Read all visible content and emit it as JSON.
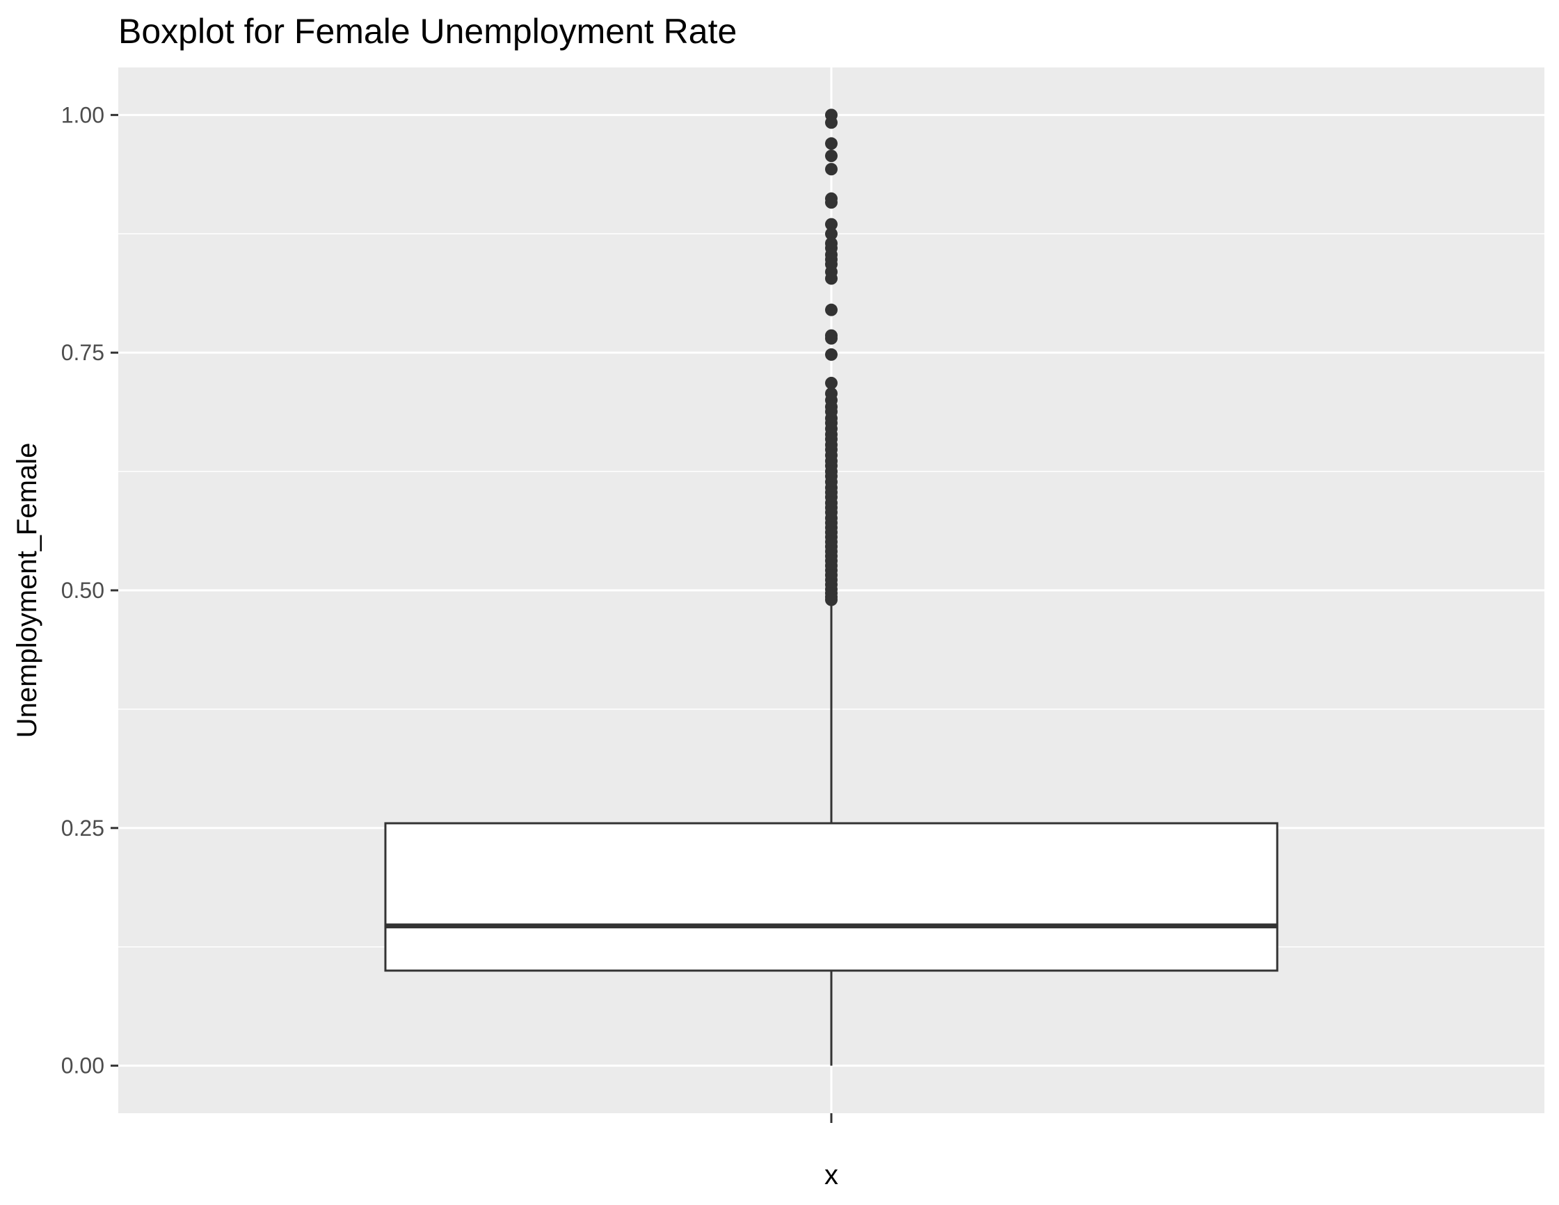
{
  "chart_data": {
    "type": "boxplot",
    "title": "Boxplot for Female Unemployment Rate",
    "xlabel": "x",
    "ylabel": "Unemployment_Female",
    "categories": [
      ""
    ],
    "ylim": [
      -0.05,
      1.05
    ],
    "y_ticks": [
      0.0,
      0.25,
      0.5,
      0.75,
      1.0
    ],
    "y_tick_labels": [
      "0.00",
      "0.25",
      "0.50",
      "0.75",
      "1.00"
    ],
    "grid": true,
    "legend": "none",
    "box": {
      "whisker_low": 0.0,
      "q1": 0.1,
      "median": 0.147,
      "q3": 0.255,
      "whisker_high": 0.487
    },
    "outliers": [
      1.0,
      0.992,
      0.97,
      0.957,
      0.943,
      0.912,
      0.908,
      0.885,
      0.875,
      0.865,
      0.86,
      0.853,
      0.848,
      0.843,
      0.835,
      0.828,
      0.795,
      0.768,
      0.765,
      0.748,
      0.718,
      0.707,
      0.7,
      0.693,
      0.688,
      0.681,
      0.676,
      0.67,
      0.664,
      0.659,
      0.653,
      0.648,
      0.642,
      0.636,
      0.631,
      0.625,
      0.62,
      0.614,
      0.608,
      0.603,
      0.598,
      0.592,
      0.587,
      0.582,
      0.576,
      0.571,
      0.566,
      0.561,
      0.556,
      0.551,
      0.546,
      0.541,
      0.536,
      0.531,
      0.526,
      0.521,
      0.516,
      0.511,
      0.506,
      0.501,
      0.497,
      0.493,
      0.49
    ],
    "colors": {
      "panel": "#ebebeb",
      "grid": "#ffffff",
      "box_fill": "#ffffff",
      "box_stroke": "#333333",
      "points": "#333333"
    }
  }
}
